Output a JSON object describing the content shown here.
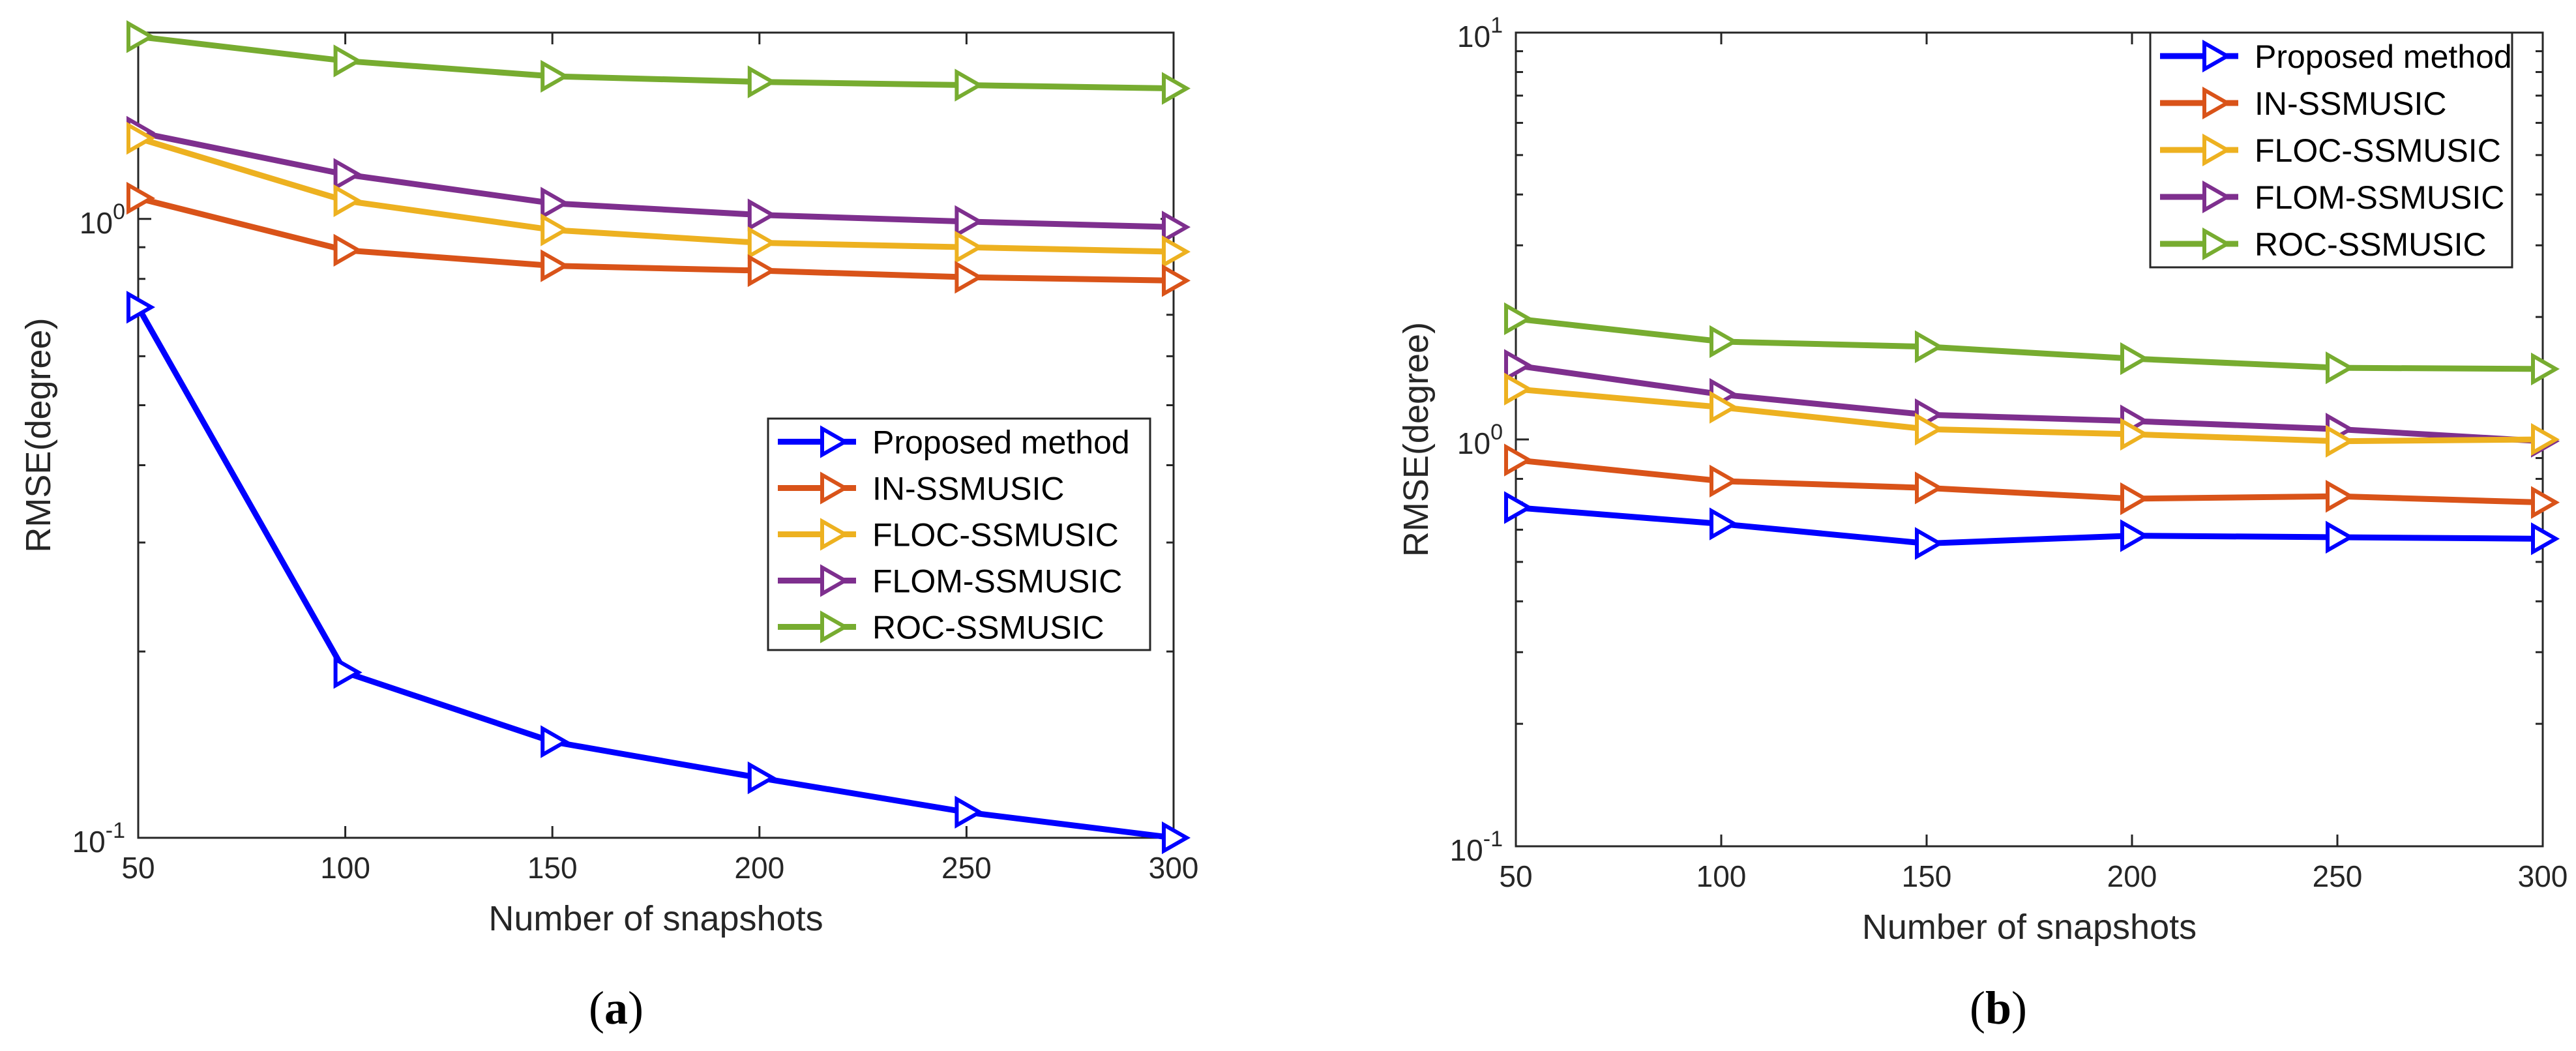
{
  "chart_data": [
    {
      "type": "line",
      "panel_label": "(a)",
      "xlabel": "Number of snapshots",
      "ylabel": "RMSE(degree)",
      "yscale": "log",
      "xlim": [
        50,
        300
      ],
      "ylim": [
        0.1,
        2.0
      ],
      "x": [
        50,
        100,
        150,
        200,
        250,
        300
      ],
      "x_tick_labels": [
        "50",
        "100",
        "150",
        "200",
        "250",
        "300"
      ],
      "y_tick_labels": [
        {
          "value": 0.1,
          "base": "10",
          "exp": "-1"
        },
        {
          "value": 1,
          "base": "10",
          "exp": "0"
        }
      ],
      "legend_position": "center-right",
      "series": [
        {
          "name": "Proposed method",
          "color": "#0000FF",
          "values": [
            0.72,
            0.185,
            0.143,
            0.125,
            0.11,
            0.1
          ]
        },
        {
          "name": "IN-SSMUSIC",
          "color": "#D95319",
          "values": [
            1.08,
            0.89,
            0.84,
            0.825,
            0.805,
            0.795
          ]
        },
        {
          "name": "FLOC-SSMUSIC",
          "color": "#EDB120",
          "values": [
            1.35,
            1.07,
            0.96,
            0.915,
            0.9,
            0.885
          ]
        },
        {
          "name": "FLOM-SSMUSIC",
          "color": "#7E2F8E",
          "values": [
            1.38,
            1.18,
            1.06,
            1.015,
            0.99,
            0.97
          ]
        },
        {
          "name": "ROC-SSMUSIC",
          "color": "#77AC30",
          "values": [
            1.97,
            1.8,
            1.7,
            1.665,
            1.645,
            1.625
          ]
        }
      ]
    },
    {
      "type": "line",
      "panel_label": "(b)",
      "xlabel": "Number of snapshots",
      "ylabel": "RMSE(degree)",
      "yscale": "log",
      "xlim": [
        50,
        300
      ],
      "ylim": [
        0.1,
        10
      ],
      "x": [
        50,
        100,
        150,
        200,
        250,
        300
      ],
      "x_tick_labels": [
        "50",
        "100",
        "150",
        "200",
        "250",
        "300"
      ],
      "y_tick_labels": [
        {
          "value": 0.1,
          "base": "10",
          "exp": "-1"
        },
        {
          "value": 1,
          "base": "10",
          "exp": "0"
        },
        {
          "value": 10,
          "base": "10",
          "exp": "1"
        }
      ],
      "legend_position": "top-right",
      "series": [
        {
          "name": "Proposed method",
          "color": "#0000FF",
          "values": [
            0.68,
            0.62,
            0.555,
            0.58,
            0.575,
            0.57
          ]
        },
        {
          "name": "IN-SSMUSIC",
          "color": "#D95319",
          "values": [
            0.89,
            0.79,
            0.76,
            0.715,
            0.725,
            0.7
          ]
        },
        {
          "name": "FLOC-SSMUSIC",
          "color": "#EDB120",
          "values": [
            1.33,
            1.2,
            1.06,
            1.03,
            0.99,
            1.0
          ]
        },
        {
          "name": "FLOM-SSMUSIC",
          "color": "#7E2F8E",
          "values": [
            1.52,
            1.29,
            1.15,
            1.11,
            1.06,
            0.99
          ]
        },
        {
          "name": "ROC-SSMUSIC",
          "color": "#77AC30",
          "values": [
            1.98,
            1.74,
            1.69,
            1.58,
            1.5,
            1.49
          ]
        }
      ]
    }
  ]
}
